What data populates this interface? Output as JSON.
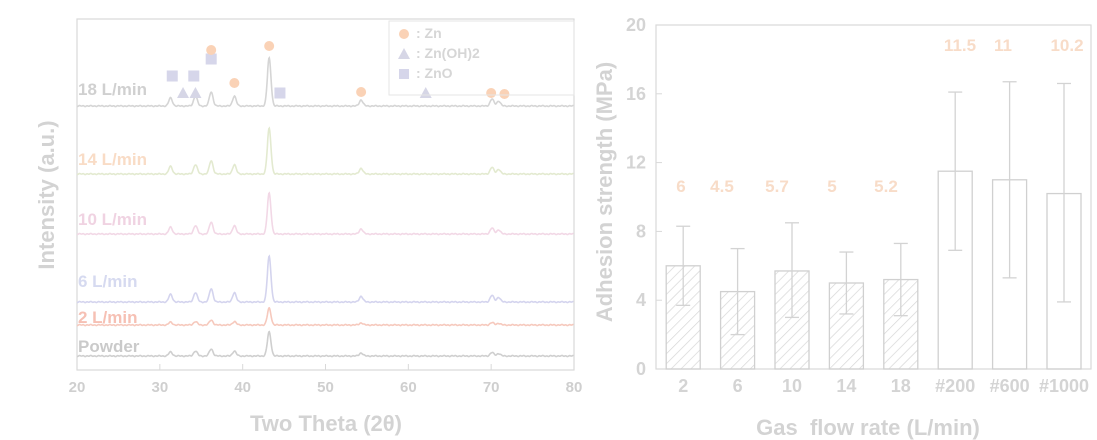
{
  "chart_data": [
    {
      "type": "line",
      "xlabel": "Two Theta (2θ)",
      "ylabel": "Intensity (a.u.)",
      "xlim": [
        20,
        80
      ],
      "xticks": [
        "20",
        "30",
        "40",
        "50",
        "60",
        "70",
        "80"
      ],
      "grid": false,
      "legend": {
        "placement": "top-right",
        "entries": [
          {
            "marker": "circle",
            "label": ": Zn",
            "color": "#fad2b6"
          },
          {
            "marker": "triangle",
            "label": ": Zn(OH)2",
            "color": "#d6d6e6"
          },
          {
            "marker": "square",
            "label": ": ZnO",
            "color": "#d6d6ea"
          }
        ]
      },
      "series": [
        {
          "name": "18 L/min",
          "color": "#d5d5d5",
          "labelColor": "#d0d0d0"
        },
        {
          "name": "14 L/min",
          "color": "#e3ead0",
          "labelColor": "#f9dcc6"
        },
        {
          "name": "10 L/min",
          "color": "#f2d8e6",
          "labelColor": "#f0d3e2"
        },
        {
          "name": "6 L/min",
          "color": "#d4d4ee",
          "labelColor": "#d6daf0"
        },
        {
          "name": "2 L/min",
          "color": "#f6c9bd",
          "labelColor": "#f6c0b4"
        },
        {
          "name": "Powder",
          "color": "#cfcfcf",
          "labelColor": "#cacaca"
        }
      ],
      "peak_markers": [
        {
          "type": "square",
          "x": 31.5
        },
        {
          "type": "square",
          "x": 34.1
        },
        {
          "type": "square",
          "x": 36.2
        },
        {
          "type": "square",
          "x": 44.5
        },
        {
          "type": "square",
          "x": 62.0
        },
        {
          "type": "triangle",
          "x": 32.8
        },
        {
          "type": "triangle",
          "x": 34.3
        },
        {
          "type": "triangle",
          "x": 62.1
        },
        {
          "type": "circle",
          "x": 36.2
        },
        {
          "type": "circle",
          "x": 39.0
        },
        {
          "type": "circle",
          "x": 43.2
        },
        {
          "type": "circle",
          "x": 54.3
        },
        {
          "type": "circle",
          "x": 70.0
        },
        {
          "type": "circle",
          "x": 71.6
        }
      ]
    },
    {
      "type": "bar",
      "xlabel": "Gas  flow rate (L/min)",
      "ylabel": "Adhesion strength (MPa)",
      "ylim": [
        0,
        20
      ],
      "yticks": [
        "0",
        "4",
        "8",
        "12",
        "16",
        "20"
      ],
      "grid": false,
      "categories": [
        "2",
        "6",
        "10",
        "14",
        "18",
        "#200",
        "#600",
        "#1000"
      ],
      "values": [
        6,
        4.5,
        5.7,
        5,
        5.2,
        11.5,
        11,
        10.2
      ],
      "value_labels": [
        "6",
        "4.5",
        "5.7",
        "5",
        "5.2",
        "11.5",
        "11",
        "10.2"
      ],
      "error_low": [
        3.7,
        2.0,
        3.0,
        3.2,
        3.1,
        6.9,
        5.3,
        3.9
      ],
      "error_high": [
        8.3,
        7.0,
        8.5,
        6.8,
        7.3,
        16.1,
        16.7,
        16.6
      ],
      "hatched": [
        true,
        true,
        true,
        true,
        true,
        false,
        false,
        false
      ]
    }
  ]
}
